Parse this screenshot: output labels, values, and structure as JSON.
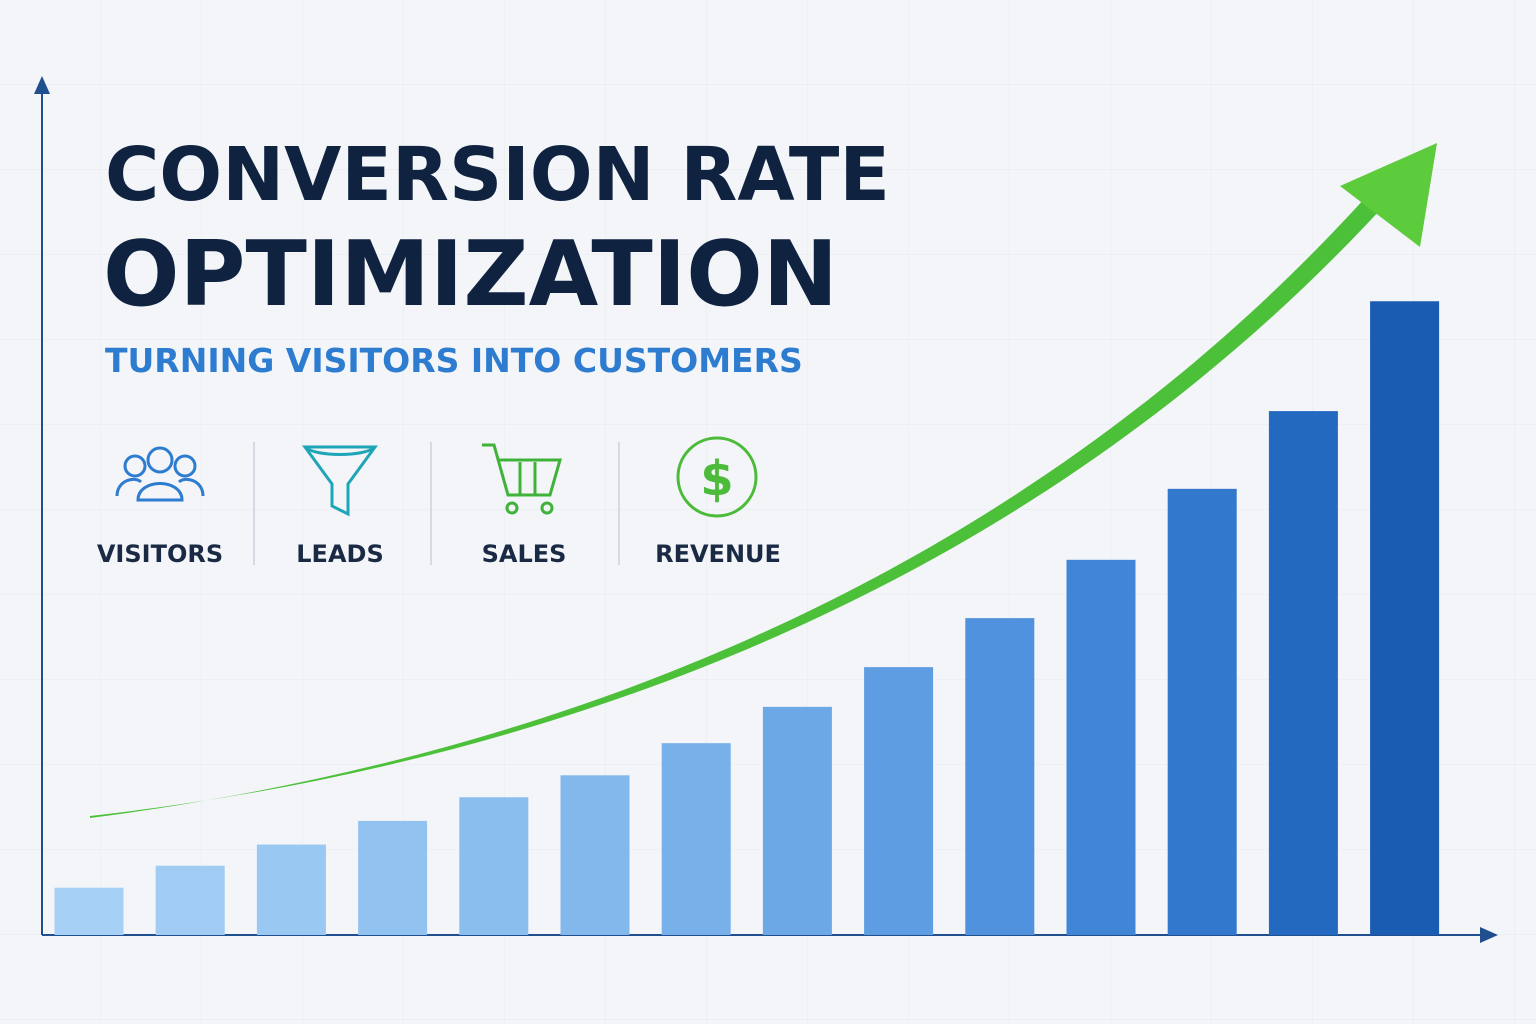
{
  "chart_data": {
    "type": "bar",
    "title_lines": [
      "CONVERSION RATE",
      "OPTIMIZATION"
    ],
    "subtitle": "TURNING VISITORS INTO CUSTOMERS",
    "stages": [
      "VISITORS",
      "LEADS",
      "SALES",
      "REVENUE"
    ],
    "categories": [
      null,
      null,
      null,
      null,
      null,
      null,
      null,
      null,
      null,
      null,
      null,
      null,
      null,
      null
    ],
    "values": [
      5.6,
      8.2,
      10.7,
      13.5,
      16.3,
      18.9,
      22.7,
      27.0,
      31.7,
      37.5,
      44.4,
      52.8,
      62.0,
      75.0
    ],
    "colors": [
      "#a6d0f5",
      "#a0ccf3",
      "#99c8f2",
      "#92c3f0",
      "#8abeee",
      "#82b8ec",
      "#78b0ea",
      "#6ca7e6",
      "#5f9de2",
      "#5092dd",
      "#4186d6",
      "#3278cc",
      "#2469c0",
      "#1a5cb2"
    ],
    "ylim": [
      0,
      100
    ],
    "grid": false
  }
}
